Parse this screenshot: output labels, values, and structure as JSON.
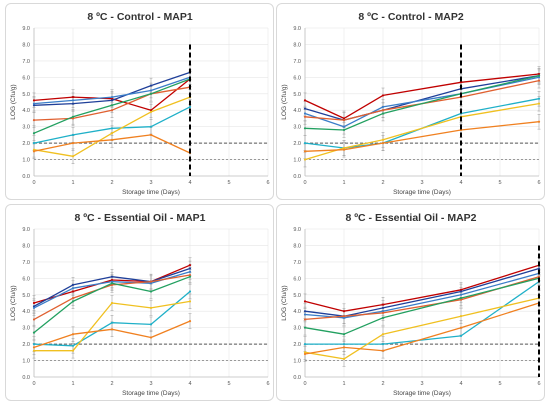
{
  "chart_data": [
    {
      "type": "line",
      "title": "8 ºC - Control - MAP1",
      "xlabel": "Storage time (Days)",
      "ylabel": "LOG (Cfu/g)",
      "xlim": [
        0,
        6
      ],
      "ylim": [
        0,
        9
      ],
      "xticks": [
        "0",
        "1",
        "2",
        "3",
        "4",
        "5",
        "6"
      ],
      "yticks": [
        "0.0",
        "1.0",
        "2.0",
        "3.0",
        "4.0",
        "5.0",
        "6.0",
        "7.0",
        "8.0",
        "9.0"
      ],
      "ref_lines": [
        {
          "y": 2.0,
          "color": "#555555",
          "dash": "3,2"
        },
        {
          "y": 1.0,
          "color": "#999999",
          "dash": "2,2"
        }
      ],
      "cutoff_day": 4,
      "series": [
        {
          "color": "#c00000",
          "x": [
            0,
            1,
            2,
            3,
            4
          ],
          "values": [
            4.6,
            4.8,
            4.7,
            4.0,
            5.9
          ]
        },
        {
          "color": "#1f3f99",
          "x": [
            0,
            1,
            2,
            3,
            4
          ],
          "values": [
            4.3,
            4.4,
            4.6,
            5.5,
            6.3
          ]
        },
        {
          "color": "#3a7dc8",
          "x": [
            0,
            1,
            2,
            3,
            4
          ],
          "values": [
            4.4,
            4.6,
            4.8,
            5.2,
            6.0
          ]
        },
        {
          "color": "#e06030",
          "x": [
            0,
            1,
            2,
            3,
            4
          ],
          "values": [
            3.4,
            3.5,
            4.0,
            5.0,
            5.4
          ]
        },
        {
          "color": "#22a060",
          "x": [
            0,
            1,
            2,
            3,
            4
          ],
          "values": [
            2.6,
            3.6,
            4.3,
            5.0,
            5.9
          ]
        },
        {
          "color": "#1fb0c8",
          "x": [
            0,
            1,
            2,
            3,
            4
          ],
          "values": [
            2.0,
            2.5,
            2.9,
            3.0,
            4.2
          ]
        },
        {
          "color": "#f0c020",
          "x": [
            0,
            1,
            2,
            3,
            4
          ],
          "values": [
            1.6,
            1.2,
            2.6,
            3.9,
            4.8
          ]
        },
        {
          "color": "#f08020",
          "x": [
            0,
            1,
            2,
            3,
            4
          ],
          "values": [
            1.5,
            2.0,
            2.2,
            2.5,
            1.4
          ]
        }
      ]
    },
    {
      "type": "line",
      "title": "8 ºC - Control - MAP2",
      "xlabel": "Storage time (Days)",
      "ylabel": "LOG (Cfu/g)",
      "xlim": [
        0,
        6
      ],
      "ylim": [
        0,
        9
      ],
      "xticks": [
        "0",
        "1",
        "2",
        "3",
        "4",
        "5",
        "6"
      ],
      "yticks": [
        "0.0",
        "1.0",
        "2.0",
        "3.0",
        "4.0",
        "5.0",
        "6.0",
        "7.0",
        "8.0",
        "9.0"
      ],
      "ref_lines": [
        {
          "y": 2.0,
          "color": "#555555",
          "dash": "3,2"
        },
        {
          "y": 1.0,
          "color": "#999999",
          "dash": "2,2"
        }
      ],
      "cutoff_day": 4,
      "series": [
        {
          "color": "#c00000",
          "x": [
            0,
            1,
            2,
            4,
            6
          ],
          "values": [
            4.6,
            3.5,
            4.9,
            5.7,
            6.2
          ]
        },
        {
          "color": "#1f3f99",
          "x": [
            0,
            1,
            2,
            4,
            6
          ],
          "values": [
            4.1,
            3.4,
            4.0,
            5.3,
            6.1
          ]
        },
        {
          "color": "#3a7dc8",
          "x": [
            0,
            1,
            2,
            4,
            6
          ],
          "values": [
            3.8,
            3.0,
            4.2,
            5.0,
            6.0
          ]
        },
        {
          "color": "#e06030",
          "x": [
            0,
            1,
            2,
            4,
            6
          ],
          "values": [
            3.6,
            3.4,
            4.0,
            4.8,
            5.8
          ]
        },
        {
          "color": "#22a060",
          "x": [
            0,
            1,
            2,
            4,
            6
          ],
          "values": [
            2.9,
            2.8,
            3.8,
            5.0,
            6.1
          ]
        },
        {
          "color": "#1fb0c8",
          "x": [
            0,
            1,
            2,
            4,
            6
          ],
          "values": [
            2.0,
            1.7,
            2.0,
            3.8,
            4.7
          ]
        },
        {
          "color": "#f0c020",
          "x": [
            0,
            1,
            2,
            4,
            6
          ],
          "values": [
            1.0,
            1.7,
            2.2,
            3.6,
            4.4
          ]
        },
        {
          "color": "#f08020",
          "x": [
            0,
            1,
            2,
            4,
            6
          ],
          "values": [
            1.5,
            1.6,
            2.0,
            2.8,
            3.3
          ]
        }
      ]
    },
    {
      "type": "line",
      "title": "8 ºC - Essential Oil - MAP1",
      "xlabel": "Storage time (Days)",
      "ylabel": "LOG (Cfu/g)",
      "xlim": [
        0,
        6
      ],
      "ylim": [
        0,
        9
      ],
      "xticks": [
        "0",
        "1",
        "2",
        "3",
        "4",
        "5",
        "6"
      ],
      "yticks": [
        "0.0",
        "1.0",
        "2.0",
        "3.0",
        "4.0",
        "5.0",
        "6.0",
        "7.0",
        "8.0",
        "9.0"
      ],
      "ref_lines": [
        {
          "y": 2.0,
          "color": "#555555",
          "dash": "3,2"
        },
        {
          "y": 1.0,
          "color": "#999999",
          "dash": "2,2"
        }
      ],
      "cutoff_day": null,
      "series": [
        {
          "color": "#c00000",
          "x": [
            0,
            1,
            2,
            3,
            4
          ],
          "values": [
            4.5,
            5.2,
            5.9,
            5.8,
            6.8
          ]
        },
        {
          "color": "#1f3f99",
          "x": [
            0,
            1,
            2,
            3,
            4
          ],
          "values": [
            4.3,
            5.6,
            6.1,
            5.8,
            6.6
          ]
        },
        {
          "color": "#3a7dc8",
          "x": [
            0,
            1,
            2,
            3,
            4
          ],
          "values": [
            4.2,
            5.4,
            5.8,
            5.7,
            6.4
          ]
        },
        {
          "color": "#e06030",
          "x": [
            0,
            1,
            2,
            3,
            4
          ],
          "values": [
            3.5,
            4.8,
            5.6,
            5.8,
            6.2
          ]
        },
        {
          "color": "#22a060",
          "x": [
            0,
            1,
            2,
            3,
            4
          ],
          "values": [
            2.7,
            4.6,
            5.7,
            5.2,
            6.1
          ]
        },
        {
          "color": "#1fb0c8",
          "x": [
            0,
            1,
            2,
            3,
            4
          ],
          "values": [
            2.0,
            1.9,
            3.3,
            3.2,
            5.2
          ]
        },
        {
          "color": "#f0c020",
          "x": [
            0,
            1,
            2,
            3,
            4
          ],
          "values": [
            1.6,
            1.6,
            4.5,
            4.2,
            4.6
          ]
        },
        {
          "color": "#f08020",
          "x": [
            0,
            1,
            2,
            3,
            4
          ],
          "values": [
            1.8,
            2.6,
            2.9,
            2.4,
            3.4
          ]
        }
      ]
    },
    {
      "type": "line",
      "title": "8 ºC - Essential Oil - MAP2",
      "xlabel": "Storage time (Days)",
      "ylabel": "LOG (Cfu/g)",
      "xlim": [
        0,
        6
      ],
      "ylim": [
        0,
        9
      ],
      "xticks": [
        "0",
        "1",
        "2",
        "3",
        "4",
        "5",
        "6"
      ],
      "yticks": [
        "0.0",
        "1.0",
        "2.0",
        "3.0",
        "4.0",
        "5.0",
        "6.0",
        "7.0",
        "8.0",
        "9.0"
      ],
      "ref_lines": [
        {
          "y": 2.0,
          "color": "#555555",
          "dash": "3,2"
        },
        {
          "y": 1.0,
          "color": "#999999",
          "dash": "2,2"
        }
      ],
      "cutoff_day": 6,
      "series": [
        {
          "color": "#c00000",
          "x": [
            0,
            1,
            2,
            4,
            6
          ],
          "values": [
            4.6,
            4.0,
            4.4,
            5.3,
            6.8
          ]
        },
        {
          "color": "#1f3f99",
          "x": [
            0,
            1,
            2,
            4,
            6
          ],
          "values": [
            4.0,
            3.7,
            4.2,
            5.2,
            6.6
          ]
        },
        {
          "color": "#3a7dc8",
          "x": [
            0,
            1,
            2,
            4,
            6
          ],
          "values": [
            3.8,
            3.6,
            4.0,
            5.0,
            6.3
          ]
        },
        {
          "color": "#e06030",
          "x": [
            0,
            1,
            2,
            4,
            6
          ],
          "values": [
            3.5,
            3.7,
            3.9,
            4.7,
            6.1
          ]
        },
        {
          "color": "#22a060",
          "x": [
            0,
            1,
            2,
            4,
            6
          ],
          "values": [
            3.0,
            2.6,
            3.6,
            4.8,
            6.0
          ]
        },
        {
          "color": "#1fb0c8",
          "x": [
            0,
            1,
            2,
            4,
            6
          ],
          "values": [
            2.0,
            2.0,
            2.0,
            2.5,
            5.8
          ]
        },
        {
          "color": "#f0c020",
          "x": [
            0,
            1,
            2,
            4,
            6
          ],
          "values": [
            1.5,
            1.1,
            2.6,
            3.7,
            4.8
          ]
        },
        {
          "color": "#f08020",
          "x": [
            0,
            1,
            2,
            4,
            6
          ],
          "values": [
            1.4,
            1.8,
            1.6,
            3.0,
            4.5
          ]
        }
      ]
    }
  ]
}
